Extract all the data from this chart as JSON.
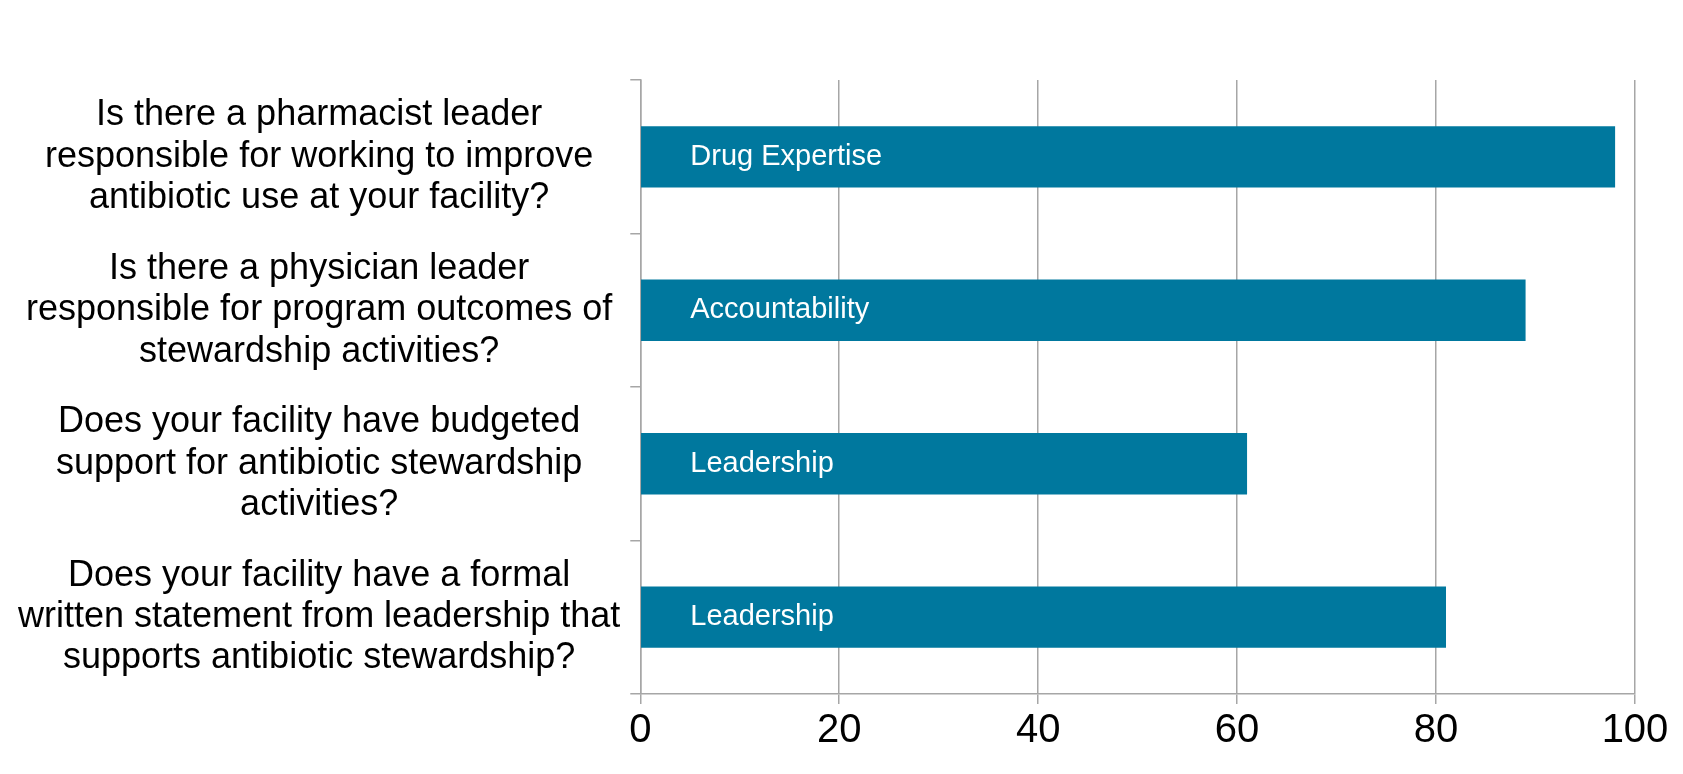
{
  "chart_data": {
    "type": "bar",
    "orientation": "horizontal",
    "categories": [
      "Is there a pharmacist leader responsible for working to improve antibiotic use at your facility?",
      "Is there a physician leader responsible for program outcomes of stewardship activities?",
      "Does your facility have budgeted support for antibiotic stewardship activities?",
      "Does your facility have a formal written statement from leadership that supports antibiotic stewardship?"
    ],
    "values": [
      98,
      89,
      61,
      81
    ],
    "color": "#00789e",
    "xlim": [
      0,
      100
    ],
    "xticks": [
      0,
      20,
      40,
      60,
      80,
      100
    ],
    "grid": "x",
    "annotations": [
      "Drug Expertise",
      "Accountability",
      "Leadership",
      "Leadership"
    ]
  }
}
